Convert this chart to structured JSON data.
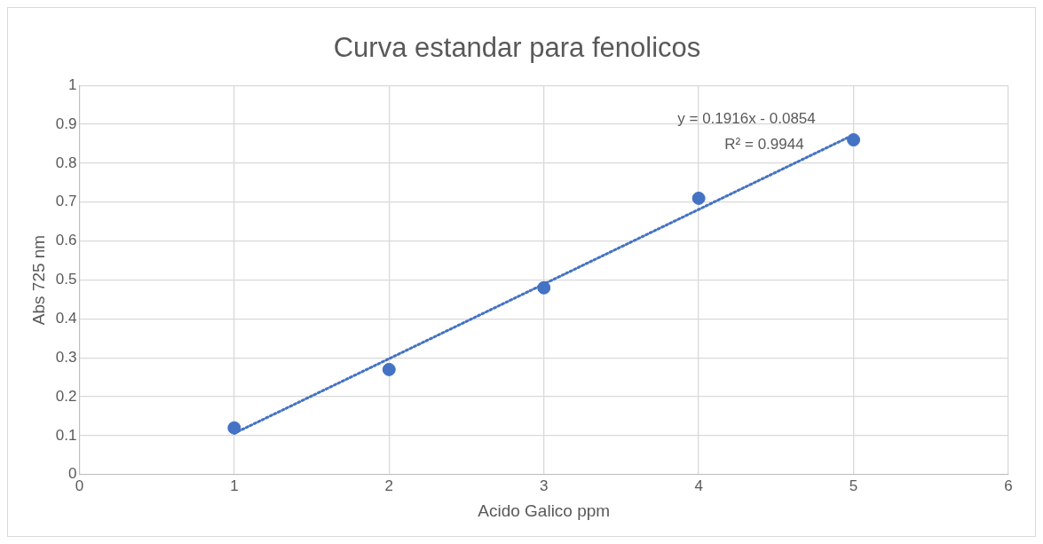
{
  "chart_data": {
    "type": "scatter",
    "title": "Curva estandar para fenolicos",
    "xlabel": "Acido Galico ppm",
    "ylabel": "Abs 725 nm",
    "xlim": [
      0,
      6
    ],
    "xticks": [
      0,
      1,
      2,
      3,
      4,
      5,
      6
    ],
    "ylim": [
      0,
      1
    ],
    "yticks": [
      0,
      0.1,
      0.2,
      0.3,
      0.4,
      0.5,
      0.6,
      0.7,
      0.8,
      0.9,
      1
    ],
    "grid": true,
    "series": [
      {
        "color": "#4472c4",
        "marker": "circle",
        "x": [
          1,
          2,
          3,
          4,
          5
        ],
        "values": [
          0.12,
          0.27,
          0.48,
          0.71,
          0.86
        ]
      },
      {
        "type": "line",
        "color": "#4472c4",
        "marker": "none",
        "line_style": "dotted",
        "x": [
          1,
          5
        ],
        "values": [
          0.106,
          0.873
        ]
      }
    ],
    "annotations": [
      "y = 0.1916x - 0.0854",
      "R² = 0.9944"
    ]
  }
}
